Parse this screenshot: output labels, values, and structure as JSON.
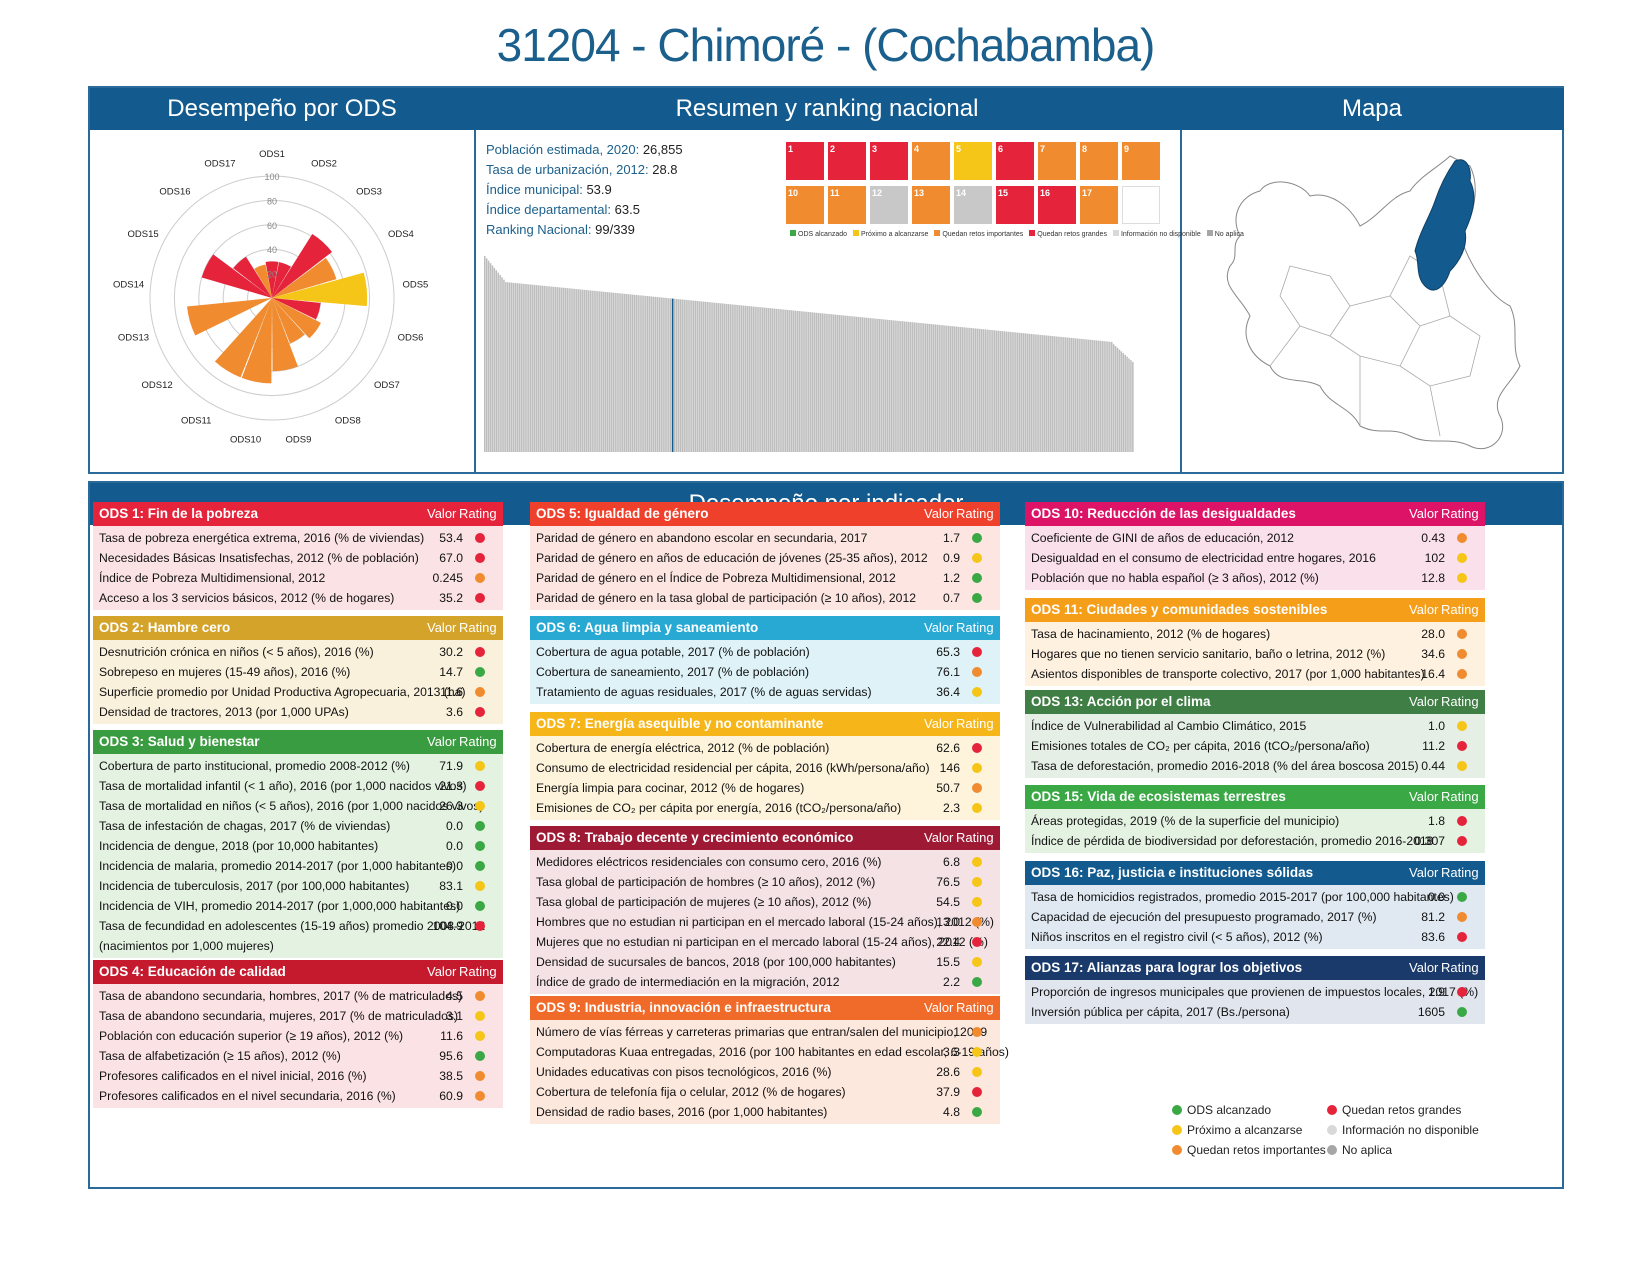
{
  "title": "31204 - Chimoré - (Cochabamba)",
  "headers": {
    "ods_perf": "Desempeño por ODS",
    "summary": "Resumen y ranking nacional",
    "map": "Mapa",
    "indicators": "Desempeño por indicador"
  },
  "stats": [
    {
      "label": "Población estimada, 2020:",
      "value": "26,855"
    },
    {
      "label": "Tasa de urbanización, 2012:",
      "value": "28.8"
    },
    {
      "label": "Índice municipal:",
      "value": "53.9"
    },
    {
      "label": "Índice departamental:",
      "value": "63.5"
    },
    {
      "label": "Ranking Nacional:",
      "value": "99/339"
    }
  ],
  "sdg_icons": [
    {
      "n": "1",
      "color": "#e5243b"
    },
    {
      "n": "2",
      "color": "#e5243b"
    },
    {
      "n": "3",
      "color": "#e5243b"
    },
    {
      "n": "4",
      "color": "#f08b2f"
    },
    {
      "n": "5",
      "color": "#f5c518"
    },
    {
      "n": "6",
      "color": "#e5243b"
    },
    {
      "n": "7",
      "color": "#f08b2f"
    },
    {
      "n": "8",
      "color": "#f08b2f"
    },
    {
      "n": "9",
      "color": "#f08b2f"
    },
    {
      "n": "10",
      "color": "#f08b2f"
    },
    {
      "n": "11",
      "color": "#f08b2f"
    },
    {
      "n": "12",
      "color": "#c8c8c8"
    },
    {
      "n": "13",
      "color": "#f08b2f"
    },
    {
      "n": "14",
      "color": "#c8c8c8"
    },
    {
      "n": "15",
      "color": "#e5243b"
    },
    {
      "n": "16",
      "color": "#e5243b"
    },
    {
      "n": "17",
      "color": "#f08b2f"
    },
    {
      "n": "",
      "color": "#ffffff"
    }
  ],
  "icon_legend": [
    {
      "label": "ODS alcanzado",
      "color": "#3aa845"
    },
    {
      "label": "Próximo a alcanzarse",
      "color": "#f5c518"
    },
    {
      "label": "Quedan retos importantes",
      "color": "#f08b2f"
    },
    {
      "label": "Quedan retos grandes",
      "color": "#e5243b"
    },
    {
      "label": "Información no disponible",
      "color": "#d9d9d9"
    },
    {
      "label": "No aplica",
      "color": "#a6a6a6"
    }
  ],
  "radar": {
    "labels": [
      "ODS1",
      "ODS2",
      "ODS3",
      "ODS4",
      "ODS5",
      "ODS6",
      "ODS7",
      "ODS8",
      "ODS9",
      "ODS10",
      "ODS11",
      "ODS12",
      "ODS13",
      "ODS14",
      "ODS15",
      "ODS16",
      "ODS17"
    ],
    "ticks": [
      "100",
      "80",
      "60",
      "40",
      "20"
    ],
    "values": [
      30,
      30,
      62,
      55,
      78,
      40,
      45,
      40,
      60,
      70,
      70,
      0,
      70,
      0,
      60,
      40,
      28
    ],
    "colors": [
      "#e5243b",
      "#e5243b",
      "#e5243b",
      "#f08b2f",
      "#f5c518",
      "#e5243b",
      "#f08b2f",
      "#f08b2f",
      "#f08b2f",
      "#f08b2f",
      "#f08b2f",
      "#d9d9d9",
      "#f08b2f",
      "#d9d9d9",
      "#e5243b",
      "#e5243b",
      "#f08b2f"
    ]
  },
  "ranking": {
    "rank": 99,
    "total": 339
  },
  "columns": {
    "value": "Valor",
    "rating": "Rating"
  },
  "legend": [
    {
      "label": "ODS alcanzado",
      "color": "#3aa845"
    },
    {
      "label": "Quedan retos grandes",
      "color": "#e5243b"
    },
    {
      "label": "Próximo a alcanzarse",
      "color": "#f5c518"
    },
    {
      "label": "Información no disponible",
      "color": "#d9d9d9"
    },
    {
      "label": "Quedan retos importantes",
      "color": "#f08b2f"
    },
    {
      "label": "No aplica",
      "color": "#a6a6a6"
    }
  ],
  "tables": [
    {
      "title": "ODS 1: Fin de la pobreza",
      "color": "#e5243b",
      "bg": "#fbe3e5",
      "rows": [
        {
          "t": "Tasa de pobreza energética extrema, 2016 (% de viviendas)",
          "v": "53.4",
          "r": "red"
        },
        {
          "t": "Necesidades Básicas Insatisfechas, 2012 (% de población)",
          "v": "67.0",
          "r": "red"
        },
        {
          "t": "Índice de Pobreza Multidimensional, 2012",
          "v": "0.245",
          "r": "orange"
        },
        {
          "t": "Acceso a los 3 servicios básicos, 2012 (% de hogares)",
          "v": "35.2",
          "r": "red"
        }
      ]
    },
    {
      "title": "ODS 2: Hambre cero",
      "color": "#d4a32a",
      "bg": "#faf1dc",
      "rows": [
        {
          "t": "Desnutrición crónica en niños (< 5 años), 2016 (%)",
          "v": "30.2",
          "r": "red"
        },
        {
          "t": "Sobrepeso en mujeres (15-49 años), 2016 (%)",
          "v": "14.7",
          "r": "green"
        },
        {
          "t": "Superficie promedio por Unidad Productiva Agropecuaria, 2013 (ha)",
          "v": "11.6",
          "r": "orange"
        },
        {
          "t": "Densidad de tractores, 2013 (por 1,000 UPAs)",
          "v": "3.6",
          "r": "red"
        }
      ]
    },
    {
      "title": "ODS 3: Salud y bienestar",
      "color": "#3a9c40",
      "bg": "#e4f2e2",
      "rows": [
        {
          "t": "Cobertura de parto institucional, promedio 2008-2012 (%)",
          "v": "71.9",
          "r": "yellow"
        },
        {
          "t": "Tasa de mortalidad infantil (< 1 año), 2016 (por 1,000 nacidos vivos)",
          "v": "21.3",
          "r": "red"
        },
        {
          "t": "Tasa de mortalidad en niños (< 5 años), 2016 (por 1,000 nacidos vivos)",
          "v": "26.3",
          "r": "yellow"
        },
        {
          "t": "Tasa de infestación de chagas, 2017 (% de viviendas)",
          "v": "0.0",
          "r": "green"
        },
        {
          "t": "Incidencia de dengue, 2018 (por 10,000 habitantes)",
          "v": "0.0",
          "r": "green"
        },
        {
          "t": "Incidencia de malaria, promedio 2014-2017 (por 1,000 habitantes)",
          "v": "0.0",
          "r": "green"
        },
        {
          "t": "Incidencia de tuberculosis, 2017 (por 100,000 habitantes)",
          "v": "83.1",
          "r": "yellow"
        },
        {
          "t": "Incidencia de VIH, promedio 2014-2017 (por 1,000,000 habitantes)",
          "v": "0.0",
          "r": "green"
        },
        {
          "t": "Tasa de fecundidad en adolescentes (15-19 años) promedio 2008-2012",
          "v": "104.9",
          "r": "red"
        },
        {
          "t": "(nacimientos por 1,000 mujeres)",
          "v": "",
          "r": ""
        }
      ]
    },
    {
      "title": "ODS 4: Educación de calidad",
      "color": "#c5192d",
      "bg": "#fbe3e5",
      "rows": [
        {
          "t": "Tasa de abandono secundaria, hombres, 2017 (% de matriculados)",
          "v": "4.5",
          "r": "orange"
        },
        {
          "t": "Tasa de abandono secundaria, mujeres, 2017 (% de matriculados)",
          "v": "3.1",
          "r": "yellow"
        },
        {
          "t": "Población con educación superior (≥ 19 años), 2012 (%)",
          "v": "11.6",
          "r": "yellow"
        },
        {
          "t": "Tasa de alfabetización (≥ 15 años), 2012 (%)",
          "v": "95.6",
          "r": "green"
        },
        {
          "t": "Profesores calificados en el nivel inicial, 2016 (%)",
          "v": "38.5",
          "r": "orange"
        },
        {
          "t": "Profesores calificados en el nivel secundaria, 2016 (%)",
          "v": "60.9",
          "r": "orange"
        }
      ]
    },
    {
      "title": "ODS 5: Igualdad de género",
      "color": "#ef402b",
      "bg": "#fde6e1",
      "rows": [
        {
          "t": "Paridad de género en abandono escolar en secundaria, 2017",
          "v": "1.7",
          "r": "green"
        },
        {
          "t": "Paridad de género en años de educación de jóvenes (25-35 años), 2012",
          "v": "0.9",
          "r": "yellow"
        },
        {
          "t": "Paridad de género en el Índice de Pobreza Multidimensional, 2012",
          "v": "1.2",
          "r": "green"
        },
        {
          "t": "Paridad de género en la tasa global de participación (≥ 10 años), 2012",
          "v": "0.7",
          "r": "green"
        }
      ]
    },
    {
      "title": "ODS 6: Agua limpia y saneamiento",
      "color": "#27a9d4",
      "bg": "#def2f8",
      "rows": [
        {
          "t": "Cobertura de agua potable, 2017 (% de población)",
          "v": "65.3",
          "r": "red"
        },
        {
          "t": "Cobertura de saneamiento, 2017 (% de población)",
          "v": "76.1",
          "r": "orange"
        },
        {
          "t": "Tratamiento de aguas residuales, 2017 (% de aguas servidas)",
          "v": "36.4",
          "r": "yellow"
        }
      ]
    },
    {
      "title": "ODS 7: Energía asequible y no contaminante",
      "color": "#f6b61a",
      "bg": "#fef4dc",
      "rows": [
        {
          "t": "Cobertura de energía eléctrica, 2012 (% de población)",
          "v": "62.6",
          "r": "red"
        },
        {
          "t": "Consumo de electricidad residencial per cápita, 2016 (kWh/persona/año)",
          "v": "146",
          "r": "yellow"
        },
        {
          "t": "Energía limpia para cocinar, 2012 (% de hogares)",
          "v": "50.7",
          "r": "orange"
        },
        {
          "t": "Emisiones de CO₂ per cápita por energía, 2016 (tCO₂/persona/año)",
          "v": "2.3",
          "r": "yellow"
        }
      ]
    },
    {
      "title": "ODS 8: Trabajo decente y crecimiento económico",
      "color": "#9e1a34",
      "bg": "#f4e2e5",
      "rows": [
        {
          "t": "Medidores eléctricos residenciales con consumo cero, 2016 (%)",
          "v": "6.8",
          "r": "yellow"
        },
        {
          "t": "Tasa global de participación de hombres (≥ 10 años), 2012 (%)",
          "v": "76.5",
          "r": "yellow"
        },
        {
          "t": "Tasa global de participación de mujeres (≥ 10 años), 2012 (%)",
          "v": "54.5",
          "r": "yellow"
        },
        {
          "t": "Hombres que no estudian ni participan en el mercado laboral (15-24 años), 2012 (%)",
          "v": "13.0",
          "r": "orange"
        },
        {
          "t": "Mujeres que no estudian ni participan en el mercado laboral (15-24 años), 2012 (%)",
          "v": "22.4",
          "r": "red"
        },
        {
          "t": "Densidad de sucursales de bancos, 2018 (por 100,000 habitantes)",
          "v": "15.5",
          "r": "yellow"
        },
        {
          "t": "Índice de grado de intermediación en la migración, 2012",
          "v": "2.2",
          "r": "green"
        }
      ]
    },
    {
      "title": "ODS 9: Industria, innovación e infraestructura",
      "color": "#f06b2a",
      "bg": "#fde8dd",
      "rows": [
        {
          "t": "Número de vías férreas y carreteras primarias que entran/salen del municipio, 2019",
          "v": "1",
          "r": "orange"
        },
        {
          "t": "Computadoras Kuaa entregadas, 2016 (por 100 habitantes en edad escolar, 6-19 años)",
          "v": "3.3",
          "r": "yellow"
        },
        {
          "t": "Unidades educativas con pisos tecnológicos, 2016 (%)",
          "v": "28.6",
          "r": "yellow"
        },
        {
          "t": "Cobertura de telefonía fija o celular, 2012 (% de hogares)",
          "v": "37.9",
          "r": "red"
        },
        {
          "t": "Densidad de radio bases, 2016 (por 1,000 habitantes)",
          "v": "4.8",
          "r": "green"
        }
      ]
    },
    {
      "title": "ODS 10: Reducción de las desigualdades",
      "color": "#dd1367",
      "bg": "#fae0ea",
      "rows": [
        {
          "t": "Coeficiente de GINI de años de educación, 2012",
          "v": "0.43",
          "r": "orange"
        },
        {
          "t": "Desigualdad en el consumo de electricidad entre hogares, 2016",
          "v": "102",
          "r": "yellow"
        },
        {
          "t": "Población que no habla español (≥ 3 años), 2012 (%)",
          "v": "12.8",
          "r": "yellow"
        }
      ]
    },
    {
      "title": "ODS 11: Ciudades y comunidades sostenibles",
      "color": "#f59e1a",
      "bg": "#fef1df",
      "rows": [
        {
          "t": "Tasa de hacinamiento, 2012 (% de hogares)",
          "v": "28.0",
          "r": "orange"
        },
        {
          "t": "Hogares que no tienen servicio sanitario, baño o letrina, 2012 (%)",
          "v": "34.6",
          "r": "orange"
        },
        {
          "t": "Asientos disponibles de transporte colectivo, 2017 (por 1,000 habitantes)",
          "v": "16.4",
          "r": "orange"
        }
      ]
    },
    {
      "title": "ODS 13: Acción por el clima",
      "color": "#3f7e44",
      "bg": "#e5efe5",
      "rows": [
        {
          "t": "Índice de Vulnerabilidad al Cambio Climático, 2015",
          "v": "1.0",
          "r": "yellow"
        },
        {
          "t": "Emisiones totales de CO₂ per cápita, 2016 (tCO₂/persona/año)",
          "v": "11.2",
          "r": "red"
        },
        {
          "t": "Tasa de deforestación, promedio 2016-2018 (% del área boscosa 2015)",
          "v": "0.44",
          "r": "yellow"
        }
      ]
    },
    {
      "title": "ODS 15: Vida de ecosistemas terrestres",
      "color": "#3aa845",
      "bg": "#e4f2e2",
      "rows": [
        {
          "t": "Áreas protegidas, 2019 (% de la superficie del municipio)",
          "v": "1.8",
          "r": "red"
        },
        {
          "t": "Índice de pérdida de biodiversidad por deforestación, promedio 2016-2018",
          "v": "0.307",
          "r": "red"
        }
      ]
    },
    {
      "title": "ODS 16: Paz, justicia e instituciones sólidas",
      "color": "#135b8f",
      "bg": "#e0e9f1",
      "rows": [
        {
          "t": "Tasa de homicidios registrados, promedio 2015-2017 (por 100,000 habitantes)",
          "v": "0.0",
          "r": "green"
        },
        {
          "t": "Capacidad de ejecución del presupuesto programado, 2017 (%)",
          "v": "81.2",
          "r": "orange"
        },
        {
          "t": "Niños inscritos en el registro civil (< 5 años), 2012 (%)",
          "v": "83.6",
          "r": "red"
        }
      ]
    },
    {
      "title": "ODS 17: Alianzas para lograr los objetivos",
      "color": "#1a3a6b",
      "bg": "#e0e5ee",
      "rows": [
        {
          "t": "Proporción de ingresos municipales que provienen de impuestos locales, 2017 (%)",
          "v": "1.9",
          "r": "red"
        },
        {
          "t": "Inversión pública per cápita, 2017 (Bs./persona)",
          "v": "1605",
          "r": "green"
        }
      ]
    }
  ]
}
